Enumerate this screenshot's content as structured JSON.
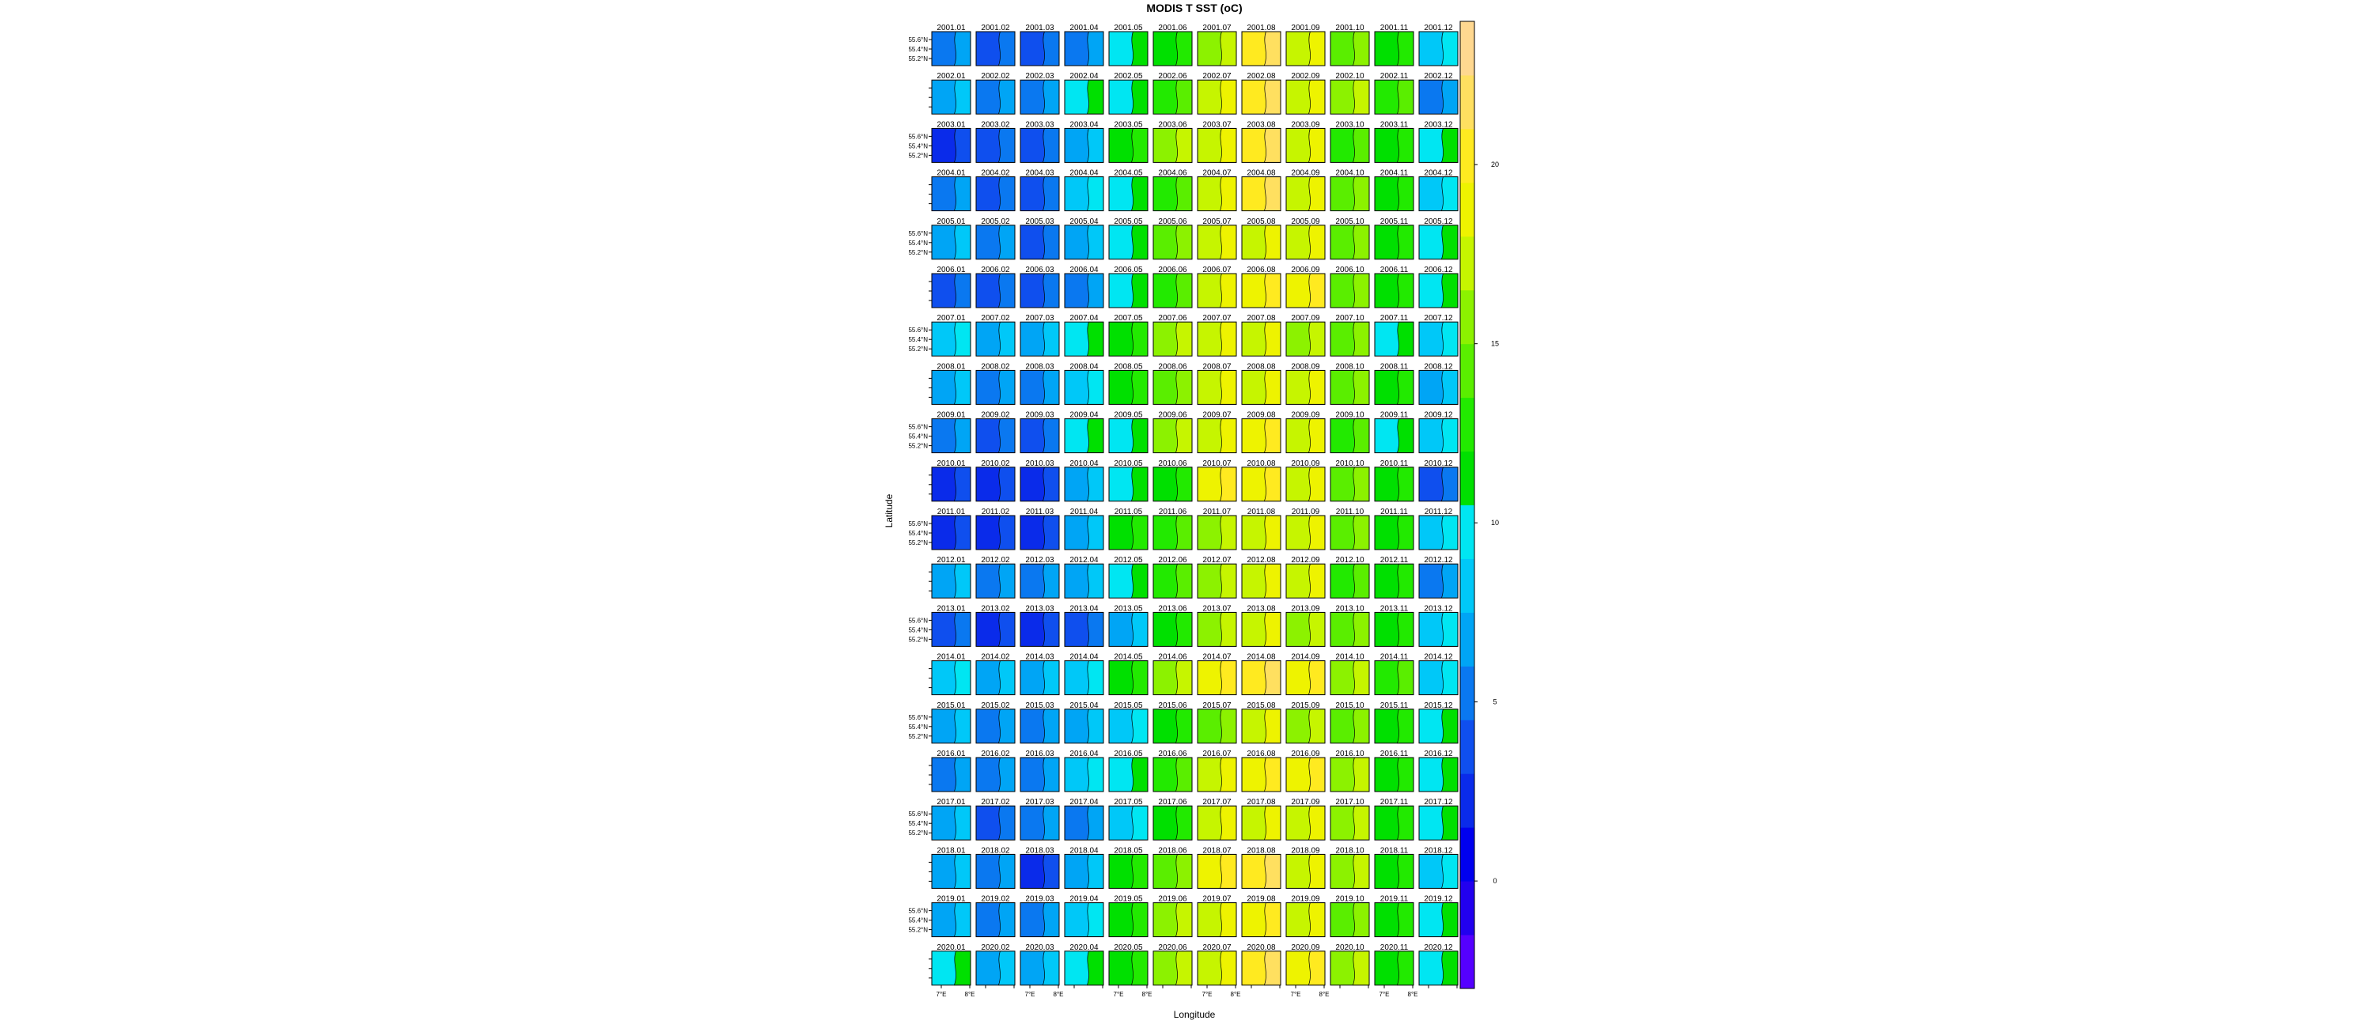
{
  "chart_data": {
    "type": "heatmap",
    "title": "MODIS T SST (oC)",
    "xlabel": "Longitude",
    "ylabel": "Latitude",
    "years": [
      2001,
      2002,
      2003,
      2004,
      2005,
      2006,
      2007,
      2008,
      2009,
      2010,
      2011,
      2012,
      2013,
      2014,
      2015,
      2016,
      2017,
      2018,
      2019,
      2020
    ],
    "months": [
      "01",
      "02",
      "03",
      "04",
      "05",
      "06",
      "07",
      "08",
      "09",
      "10",
      "11",
      "12"
    ],
    "y_tick_labels": [
      "55.6°N",
      "55.4°N",
      "55.2°N"
    ],
    "x_tick_labels": [
      "7°E",
      "8°E"
    ],
    "colorbar": {
      "range": [
        -3,
        24
      ],
      "ticks": [
        0,
        5,
        10,
        15,
        20
      ],
      "tick_labels": [
        "0",
        "5",
        "10",
        "15",
        "20"
      ],
      "step": 1.5
    },
    "colors": [
      "#5500ff",
      "#2200ee",
      "#0000ee",
      "#0a2bea",
      "#0f4fee",
      "#0a78f0",
      "#00a5f5",
      "#00c8f8",
      "#00e6f2",
      "#00e000",
      "#22ea00",
      "#5aee00",
      "#8cf200",
      "#c6f500",
      "#eef300",
      "#ffea20",
      "#ffe060",
      "#ffd890"
    ],
    "monthly_mean_sst": {
      "2001": [
        5.5,
        3.5,
        3.5,
        5.5,
        10.0,
        11.0,
        15.5,
        19.5,
        16.5,
        14.0,
        10.5,
        8.5
      ],
      "2002": [
        6.0,
        5.5,
        5.0,
        9.0,
        10.0,
        12.5,
        17.5,
        20.5,
        17.5,
        16.0,
        12.0,
        5.0
      ],
      "2003": [
        2.5,
        3.5,
        3.5,
        6.5,
        11.0,
        15.5,
        17.5,
        20.0,
        17.0,
        12.5,
        11.0,
        9.5
      ],
      "2004": [
        4.5,
        4.0,
        4.0,
        7.5,
        10.0,
        12.0,
        16.5,
        19.5,
        16.5,
        14.0,
        11.5,
        8.5
      ],
      "2005": [
        6.0,
        5.0,
        3.0,
        6.5,
        9.5,
        14.0,
        16.5,
        17.5,
        16.5,
        14.0,
        11.0,
        9.0
      ],
      "2006": [
        4.0,
        3.5,
        3.5,
        5.0,
        10.0,
        12.5,
        17.5,
        18.5,
        18.5,
        14.0,
        11.0,
        9.5
      ],
      "2007": [
        8.5,
        6.0,
        6.0,
        9.5,
        11.0,
        15.5,
        16.5,
        17.0,
        16.0,
        14.0,
        10.0,
        8.5
      ],
      "2008": [
        6.0,
        5.0,
        5.0,
        8.5,
        11.0,
        14.0,
        17.0,
        17.0,
        16.5,
        14.0,
        11.5,
        7.0
      ],
      "2009": [
        5.0,
        3.5,
        3.5,
        9.5,
        10.0,
        15.5,
        17.5,
        18.5,
        16.5,
        12.5,
        10.0,
        7.5
      ],
      "2010": [
        2.5,
        2.0,
        2.5,
        6.5,
        9.5,
        11.5,
        18.0,
        18.5,
        17.0,
        14.0,
        10.5,
        4.0
      ],
      "2011": [
        2.5,
        2.0,
        2.5,
        6.5,
        11.0,
        12.5,
        15.5,
        16.5,
        16.5,
        14.0,
        11.0,
        8.5
      ],
      "2012": [
        6.0,
        5.0,
        5.0,
        6.0,
        10.0,
        12.5,
        16.0,
        16.5,
        16.5,
        13.0,
        11.0,
        5.0
      ],
      "2013": [
        3.5,
        2.5,
        2.0,
        3.5,
        6.5,
        11.5,
        16.0,
        17.5,
        16.0,
        14.0,
        11.0,
        8.5
      ],
      "2014": [
        8.5,
        6.0,
        6.0,
        8.5,
        11.5,
        16.0,
        18.5,
        20.0,
        18.5,
        15.5,
        12.0,
        8.5
      ],
      "2015": [
        6.0,
        5.0,
        5.0,
        6.0,
        8.5,
        11.0,
        14.0,
        16.5,
        15.5,
        14.0,
        11.0,
        9.5
      ],
      "2016": [
        5.0,
        5.0,
        5.0,
        8.5,
        10.0,
        12.5,
        17.5,
        18.5,
        18.5,
        15.0,
        11.0,
        9.5
      ],
      "2017": [
        6.0,
        4.0,
        5.0,
        5.0,
        8.5,
        11.5,
        16.5,
        17.5,
        16.5,
        15.5,
        11.0,
        9.5
      ],
      "2018": [
        6.0,
        5.0,
        2.5,
        6.0,
        11.0,
        14.0,
        18.0,
        20.0,
        17.5,
        15.0,
        11.0,
        8.5
      ],
      "2019": [
        6.0,
        5.0,
        5.0,
        8.5,
        11.0,
        15.0,
        16.5,
        18.5,
        17.5,
        14.0,
        11.5,
        9.5
      ],
      "2020": [
        9.0,
        6.5,
        6.0,
        9.5,
        11.0,
        16.0,
        16.5,
        19.5,
        18.5,
        15.0,
        11.5,
        10.0
      ]
    }
  }
}
